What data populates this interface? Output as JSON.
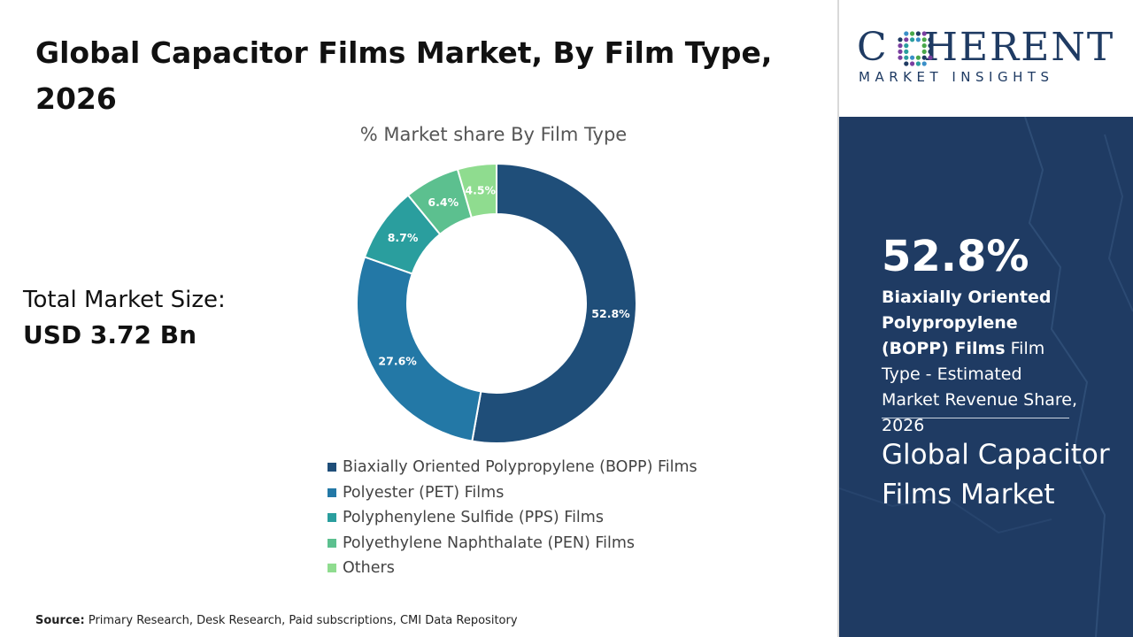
{
  "title": "Global Capacitor Films Market, By Film Type, 2026",
  "total_market": {
    "label": "Total Market Size:",
    "value": "USD 3.72 Bn"
  },
  "source": {
    "label": "Source:",
    "text": "Primary Research, Desk Research, Paid subscriptions, CMI Data Repository"
  },
  "logo": {
    "word": "COHERENT",
    "tagline": "MARKET INSIGHTS"
  },
  "highlight": {
    "value": "52.8%",
    "segment_bold": "Biaxially Oriented Polypropylene (BOPP) Films",
    "segment_rest": " Film Type - Estimated Market Revenue Share, 2026"
  },
  "panel_title": "Global Capacitor Films Market",
  "colors": {
    "panel": "#1f3b63",
    "text_dark": "#111111"
  },
  "chart_data": {
    "type": "pie",
    "title": "% Market share By Film Type",
    "donut": true,
    "unit": "%",
    "legend_position": "bottom",
    "categories": [
      "Biaxially Oriented Polypropylene (BOPP) Films",
      "Polyester (PET) Films",
      "Polyphenylene Sulfide (PPS) Films",
      "Polyethylene Naphthalate (PEN) Films",
      "Others"
    ],
    "values": [
      52.8,
      27.6,
      8.7,
      6.4,
      4.5
    ],
    "labels": [
      "52.8%",
      "27.6%",
      "8.7%",
      "6.4%",
      "4.5%"
    ],
    "colors": [
      "#1f4e79",
      "#2378a6",
      "#2a9e9e",
      "#5cc08f",
      "#8fdc8f"
    ]
  }
}
